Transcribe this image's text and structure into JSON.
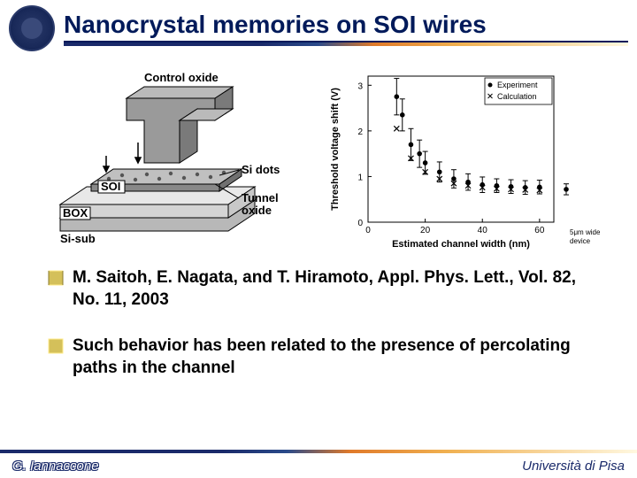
{
  "header": {
    "title": "Nanocrystal memories on SOI wires"
  },
  "diagram": {
    "labels": {
      "control_oxide": "Control oxide",
      "soi": "SOI",
      "box": "BOX",
      "si_sub": "Si-sub",
      "si_dots": "Si dots",
      "tunnel_oxide": "Tunnel\noxide"
    },
    "colors": {
      "gate": "#9a9a9a",
      "gate_side": "#7a7a7a",
      "soi_top": "#c0c0c0",
      "soi_side": "#888888",
      "box": "#d4d4d4",
      "sub": "#b8b8b8",
      "dot": "#555555",
      "label": "#000000",
      "label_bg": "#ffffff"
    }
  },
  "chart": {
    "type": "scatter-errorbar",
    "xlabel": "Estimated channel width (nm)",
    "ylabel": "Threshold voltage shift (V)",
    "xlim": [
      0,
      65
    ],
    "ylim": [
      0,
      3.2
    ],
    "xticks": [
      0,
      20,
      40,
      60
    ],
    "yticks": [
      0,
      1,
      2,
      3
    ],
    "legend": {
      "experiment": "Experiment",
      "calculation": "Calculation"
    },
    "experiment": {
      "x": [
        10,
        12,
        15,
        18,
        20,
        25,
        30,
        35,
        40,
        45,
        50,
        55,
        60
      ],
      "y": [
        2.75,
        2.35,
        1.7,
        1.5,
        1.3,
        1.1,
        0.95,
        0.88,
        0.82,
        0.8,
        0.78,
        0.76,
        0.77
      ],
      "yerr": [
        0.4,
        0.35,
        0.35,
        0.3,
        0.25,
        0.22,
        0.2,
        0.18,
        0.17,
        0.15,
        0.15,
        0.15,
        0.15
      ],
      "marker": "circle-filled",
      "color": "#000000"
    },
    "calculation": {
      "x": [
        10,
        15,
        20,
        25,
        30,
        35,
        40,
        45,
        50,
        55,
        60
      ],
      "y": [
        2.05,
        1.4,
        1.1,
        0.95,
        0.85,
        0.8,
        0.76,
        0.73,
        0.72,
        0.71,
        0.7
      ],
      "marker": "x",
      "color": "#000000"
    },
    "wide_device": {
      "label": "5μm wide\ndevice",
      "y": 0.72,
      "yerr": 0.12
    },
    "label_fontsize": 11,
    "tick_fontsize": 10,
    "legend_fontsize": 9,
    "colors": {
      "axis": "#000000",
      "bg": "#ffffff"
    }
  },
  "bullets": {
    "b1": "M. Saitoh, E. Nagata, and T. Hiramoto, Appl. Phys. Lett., Vol. 82, No. 11, 2003",
    "b2": "Such behavior has been related to the presence of percolating paths in the channel",
    "box_color": "#d4c05a"
  },
  "footer": {
    "left": "G. Iannaccone",
    "right": "Università di Pisa"
  }
}
